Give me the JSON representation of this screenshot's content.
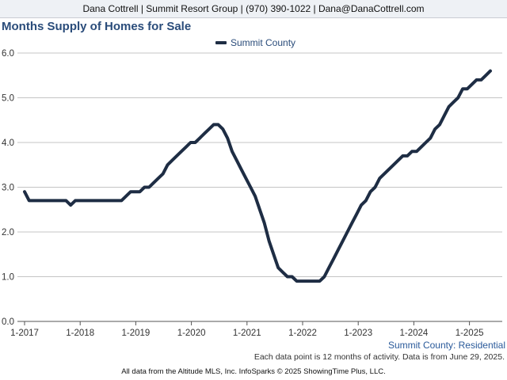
{
  "header": {
    "contact": "Dana Cottrell | Summit Resort Group | (970) 390-1022 | Dana@DanaCottrell.com"
  },
  "chart_data": {
    "type": "line",
    "title": "Months Supply of Homes for Sale",
    "subtitle": "Summit County: Residential",
    "legend_position": "top-center",
    "grid": true,
    "ylim": [
      0,
      6
    ],
    "yticks": [
      "0.0",
      "1.0",
      "2.0",
      "3.0",
      "4.0",
      "5.0",
      "6.0"
    ],
    "xticks": [
      "1-2017",
      "1-2018",
      "1-2019",
      "1-2020",
      "1-2021",
      "1-2022",
      "1-2023",
      "1-2024",
      "1-2025"
    ],
    "x": [
      "2017-01",
      "2017-02",
      "2017-03",
      "2017-04",
      "2017-05",
      "2017-06",
      "2017-07",
      "2017-08",
      "2017-09",
      "2017-10",
      "2017-11",
      "2017-12",
      "2018-01",
      "2018-02",
      "2018-03",
      "2018-04",
      "2018-05",
      "2018-06",
      "2018-07",
      "2018-08",
      "2018-09",
      "2018-10",
      "2018-11",
      "2018-12",
      "2019-01",
      "2019-02",
      "2019-03",
      "2019-04",
      "2019-05",
      "2019-06",
      "2019-07",
      "2019-08",
      "2019-09",
      "2019-10",
      "2019-11",
      "2019-12",
      "2020-01",
      "2020-02",
      "2020-03",
      "2020-04",
      "2020-05",
      "2020-06",
      "2020-07",
      "2020-08",
      "2020-09",
      "2020-10",
      "2020-11",
      "2020-12",
      "2021-01",
      "2021-02",
      "2021-03",
      "2021-04",
      "2021-05",
      "2021-06",
      "2021-07",
      "2021-08",
      "2021-09",
      "2021-10",
      "2021-11",
      "2021-12",
      "2022-01",
      "2022-02",
      "2022-03",
      "2022-04",
      "2022-05",
      "2022-06",
      "2022-07",
      "2022-08",
      "2022-09",
      "2022-10",
      "2022-11",
      "2022-12",
      "2023-01",
      "2023-02",
      "2023-03",
      "2023-04",
      "2023-05",
      "2023-06",
      "2023-07",
      "2023-08",
      "2023-09",
      "2023-10",
      "2023-11",
      "2023-12",
      "2024-01",
      "2024-02",
      "2024-03",
      "2024-04",
      "2024-05",
      "2024-06",
      "2024-07",
      "2024-08",
      "2024-09",
      "2024-10",
      "2024-11",
      "2024-12",
      "2025-01",
      "2025-02",
      "2025-03",
      "2025-04",
      "2025-05",
      "2025-06"
    ],
    "series": [
      {
        "name": "Summit County",
        "color": "#1e2d44",
        "values": [
          2.9,
          2.7,
          2.7,
          2.7,
          2.7,
          2.7,
          2.7,
          2.7,
          2.7,
          2.7,
          2.6,
          2.7,
          2.7,
          2.7,
          2.7,
          2.7,
          2.7,
          2.7,
          2.7,
          2.7,
          2.7,
          2.7,
          2.8,
          2.9,
          2.9,
          2.9,
          3.0,
          3.0,
          3.1,
          3.2,
          3.3,
          3.5,
          3.6,
          3.7,
          3.8,
          3.9,
          4.0,
          4.0,
          4.1,
          4.2,
          4.3,
          4.4,
          4.4,
          4.3,
          4.1,
          3.8,
          3.6,
          3.4,
          3.2,
          3.0,
          2.8,
          2.5,
          2.2,
          1.8,
          1.5,
          1.2,
          1.1,
          1.0,
          1.0,
          0.9,
          0.9,
          0.9,
          0.9,
          0.9,
          0.9,
          1.0,
          1.2,
          1.4,
          1.6,
          1.8,
          2.0,
          2.2,
          2.4,
          2.6,
          2.7,
          2.9,
          3.0,
          3.2,
          3.3,
          3.4,
          3.5,
          3.6,
          3.7,
          3.7,
          3.8,
          3.8,
          3.9,
          4.0,
          4.1,
          4.3,
          4.4,
          4.6,
          4.8,
          4.9,
          5.0,
          5.2,
          5.2,
          5.3,
          5.4,
          5.4,
          5.5,
          5.6
        ]
      }
    ]
  },
  "footnotes": {
    "data_note": "Each data point is 12 months of activity. Data is from June 29, 2025.",
    "source": "All data from the Altitude MLS, Inc. InfoSparks © 2025 ShowingTime Plus, LLC."
  }
}
